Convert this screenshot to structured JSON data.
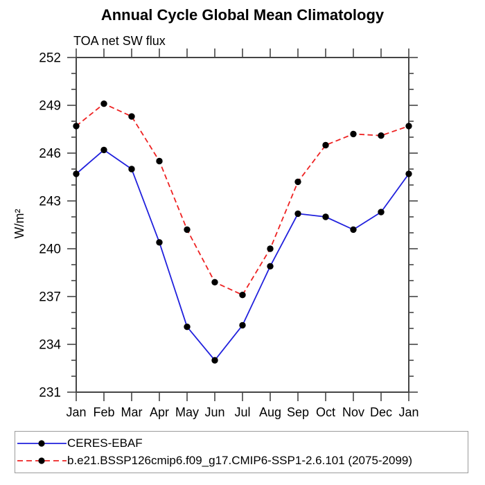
{
  "colors": {
    "obs_line": "#2020dd",
    "model_line": "#ee2222",
    "marker": "#000000",
    "axis": "#444444",
    "legend_border": "#9a9a9a"
  },
  "chart_data": {
    "type": "line",
    "title": "Annual Cycle Global Mean Climatology",
    "subtitle": "TOA net SW flux",
    "ylabel": "W/m²",
    "xlabel": "",
    "grid": false,
    "legend_position": "bottom",
    "marker": "filled-circle",
    "categories": [
      "Jan",
      "Feb",
      "Mar",
      "Apr",
      "May",
      "Jun",
      "Jul",
      "Aug",
      "Sep",
      "Oct",
      "Nov",
      "Dec",
      "Jan"
    ],
    "ylim": [
      231,
      252
    ],
    "yticks": [
      231,
      234,
      237,
      240,
      243,
      246,
      249,
      252
    ],
    "ytick_minor_step": 1,
    "series": [
      {
        "name": "CERES-EBAF",
        "color": "#2020dd",
        "dash": "solid",
        "values": [
          244.7,
          246.2,
          245.0,
          240.4,
          235.1,
          233.0,
          235.2,
          238.9,
          242.2,
          242.0,
          241.2,
          242.3,
          244.7
        ]
      },
      {
        "name": "b.e21.BSSP126cmip6.f09_g17.CMIP6-SSP1-2.6.101 (2075-2099)",
        "color": "#ee2222",
        "dash": "dashed",
        "values": [
          247.7,
          249.1,
          248.3,
          245.5,
          241.2,
          237.9,
          237.1,
          240.0,
          244.2,
          246.5,
          247.2,
          247.1,
          247.7
        ]
      }
    ]
  }
}
